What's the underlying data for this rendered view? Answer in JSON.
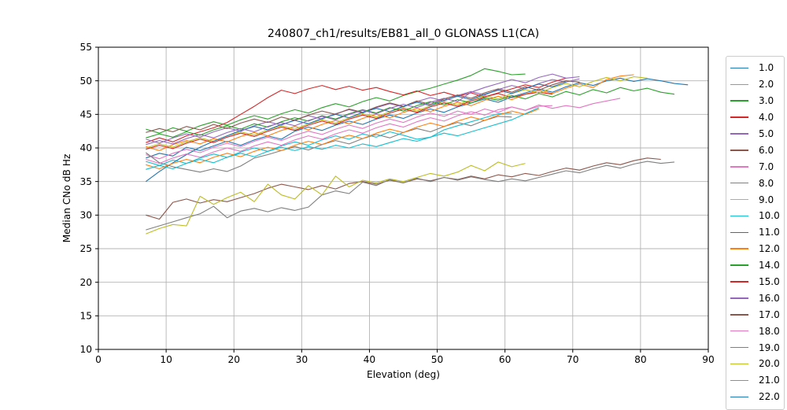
{
  "chart_data": {
    "type": "line",
    "title": "240807_ch1/results/EB81_all_0 GLONASS L1(CA)",
    "xlabel": "Elevation (deg)",
    "ylabel": "Median CNo dB Hz",
    "xlim": [
      0,
      90
    ],
    "ylim": [
      10,
      55
    ],
    "xticks": [
      0,
      10,
      20,
      30,
      40,
      50,
      60,
      70,
      80,
      90
    ],
    "yticks": [
      10,
      15,
      20,
      25,
      30,
      35,
      40,
      45,
      50,
      55
    ],
    "grid": true,
    "legend_position": "outside-right",
    "legend": [
      {
        "label": "1.0",
        "color": "#1f77b4",
        "clipped": false
      },
      {
        "label": "2.0",
        "color": "#ff7f0e",
        "clipped": false
      },
      {
        "label": "3.0",
        "color": "#2ca02c",
        "clipped": false
      },
      {
        "label": "4.0",
        "color": "#d62728",
        "clipped": false
      },
      {
        "label": "5.0",
        "color": "#9467bd",
        "clipped": false
      },
      {
        "label": "6.0",
        "color": "#8c564b",
        "clipped": false
      },
      {
        "label": "7.0",
        "color": "#e377c2",
        "clipped": false
      },
      {
        "label": "8.0",
        "color": "#7f7f7f",
        "clipped": false
      },
      {
        "label": "9.0",
        "color": "#bcbd22",
        "clipped": false
      },
      {
        "label": "10.0",
        "color": "#17becf",
        "clipped": false
      },
      {
        "label": "11.0",
        "color": "#1f77b4",
        "clipped": false
      },
      {
        "label": "12.0",
        "color": "#ff7f0e",
        "clipped": false
      },
      {
        "label": "14.0",
        "color": "#2ca02c",
        "clipped": false
      },
      {
        "label": "15.0",
        "color": "#d62728",
        "clipped": false
      },
      {
        "label": "16.0",
        "color": "#9467bd",
        "clipped": false
      },
      {
        "label": "17.0",
        "color": "#8c564b",
        "clipped": false
      },
      {
        "label": "18.0",
        "color": "#e377c2",
        "clipped": false
      },
      {
        "label": "19.0",
        "color": "#7f7f7f",
        "clipped": false
      },
      {
        "label": "20.0",
        "color": "#bcbd22",
        "clipped": false
      },
      {
        "label": "21.0",
        "color": "#17becf",
        "clipped": false
      },
      {
        "label": "22.0",
        "color": "#1f77b4",
        "clipped": true
      }
    ],
    "series": [
      {
        "name": "1.0",
        "color": "#1f77b4",
        "x0": 7,
        "step": 2,
        "y": [
          38.5,
          39.2,
          38.8,
          40.1,
          39.6,
          40.3,
          41.0,
          40.4,
          41.2,
          41.8,
          41.3,
          42.5,
          43.1,
          42.6,
          43.4,
          44.0,
          43.5,
          44.3,
          44.9,
          44.4,
          45.2,
          45.8,
          45.3,
          46.1,
          46.7,
          47.3,
          46.8,
          47.6,
          48.2,
          48.8,
          48.3,
          49.1,
          49.7,
          49.3,
          50.0,
          50.4,
          49.9,
          50.3,
          50.0,
          49.6,
          49.4
        ]
      },
      {
        "name": "2.0",
        "color": "#ff7f0e",
        "x0": 7,
        "step": 2,
        "y": [
          40.2,
          39.6,
          40.5,
          41.1,
          40.6,
          41.4,
          40.9,
          41.7,
          42.3,
          41.8,
          42.6,
          43.2,
          42.7,
          43.5,
          44.1,
          43.6,
          44.4,
          45.0,
          44.5,
          45.3,
          45.9,
          45.4,
          46.2,
          46.8,
          46.3,
          47.1,
          47.7,
          47.2,
          48.0,
          48.6,
          48.1,
          48.9,
          49.5,
          49.0,
          50.2,
          50.7,
          50.9
        ]
      },
      {
        "name": "3.0",
        "color": "#2ca02c",
        "x0": 7,
        "step": 2,
        "y": [
          42.8,
          42.2,
          43.0,
          42.5,
          43.3,
          43.9,
          43.4,
          44.2,
          44.8,
          44.3,
          45.1,
          45.7,
          45.2,
          46.0,
          46.6,
          46.1,
          46.9,
          47.5,
          47.0,
          47.8,
          48.4,
          48.9,
          49.5,
          50.1,
          50.8,
          51.8,
          51.4,
          50.9,
          51.0
        ]
      },
      {
        "name": "4.0",
        "color": "#d62728",
        "x0": 7,
        "step": 2,
        "y": [
          40.8,
          41.5,
          40.9,
          41.8,
          42.4,
          43.0,
          43.8,
          45.0,
          46.2,
          47.5,
          48.6,
          48.1,
          48.8,
          49.3,
          48.7,
          49.2,
          48.6,
          49.0,
          48.4,
          47.9,
          48.5,
          47.8,
          48.3,
          47.7,
          48.2,
          47.6,
          48.1,
          47.5,
          48.0,
          48.3,
          48.0
        ]
      },
      {
        "name": "5.0",
        "color": "#9467bd",
        "x0": 7,
        "step": 2,
        "y": [
          41.3,
          40.7,
          41.5,
          42.1,
          41.6,
          42.4,
          43.0,
          42.5,
          43.3,
          43.9,
          43.4,
          44.2,
          44.8,
          44.3,
          45.1,
          45.7,
          45.2,
          46.0,
          46.6,
          46.1,
          46.9,
          47.5,
          47.0,
          47.8,
          48.4,
          47.9,
          48.7,
          49.3,
          48.8,
          49.6,
          50.2,
          49.8,
          50.3
        ]
      },
      {
        "name": "6.0",
        "color": "#8c564b",
        "x0": 7,
        "step": 2,
        "y": [
          42.3,
          42.9,
          42.4,
          43.2,
          42.7,
          43.5,
          42.9,
          43.7,
          44.3,
          43.8,
          44.6,
          44.1,
          44.9,
          45.5,
          45.0,
          45.8,
          45.3,
          46.1,
          46.7,
          46.2,
          47.0,
          46.5,
          47.3,
          47.9,
          47.4,
          48.2,
          48.8,
          48.3,
          49.1,
          48.6,
          49.4,
          50.0,
          49.8
        ]
      },
      {
        "name": "7.0",
        "color": "#e377c2",
        "x0": 7,
        "step": 2,
        "y": [
          39.0,
          38.4,
          39.2,
          39.8,
          39.3,
          40.1,
          40.7,
          40.2,
          41.0,
          41.6,
          41.1,
          41.9,
          42.5,
          42.0,
          42.8,
          43.4,
          42.9,
          43.7,
          44.3,
          43.8,
          44.6,
          45.2,
          44.7,
          45.5,
          45.0,
          45.8,
          45.3,
          46.1,
          45.6,
          46.4,
          45.9,
          46.3,
          46.0,
          46.6,
          47.0,
          47.4
        ]
      },
      {
        "name": "8.0",
        "color": "#7f7f7f",
        "x0": 7,
        "step": 2,
        "y": [
          39.3,
          37.8,
          37.2,
          36.8,
          36.4,
          36.9,
          36.5,
          37.3,
          38.5,
          39.0,
          39.6,
          40.2,
          39.7,
          40.5,
          41.1,
          40.6,
          41.4,
          42.0,
          41.5,
          42.3,
          42.9,
          42.4,
          43.2,
          43.8,
          43.3,
          44.1,
          44.7,
          44.6
        ]
      },
      {
        "name": "9.0",
        "color": "#bcbd22",
        "x0": 7,
        "step": 2,
        "y": [
          40.0,
          40.6,
          40.1,
          40.9,
          41.5,
          41.0,
          41.8,
          42.4,
          41.9,
          42.7,
          43.3,
          42.8,
          43.6,
          44.2,
          43.7,
          44.5,
          45.1,
          44.6,
          45.4,
          46.0,
          45.5,
          46.3,
          46.9,
          46.4,
          47.2,
          47.8,
          47.3,
          48.1,
          48.7,
          48.2,
          49.0,
          49.6,
          49.1,
          49.9,
          50.5,
          50.0,
          50.6,
          50.4
        ]
      },
      {
        "name": "10.0",
        "color": "#17becf",
        "x0": 7,
        "step": 2,
        "y": [
          38.0,
          37.4,
          38.2,
          37.7,
          38.5,
          39.1,
          38.6,
          39.4,
          40.0,
          39.5,
          40.3,
          40.9,
          40.4,
          41.2,
          41.8,
          41.3,
          42.1,
          41.6,
          42.4,
          41.9,
          41.3,
          41.6,
          42.7,
          43.3,
          43.9,
          44.5,
          45.1,
          45.2
        ]
      },
      {
        "name": "11.0",
        "color": "#1f77b4",
        "x0": 7,
        "step": 2,
        "y": [
          35.0,
          36.5,
          37.8,
          39.0,
          40.1,
          41.0,
          41.8,
          42.6,
          43.2,
          42.7,
          43.5,
          44.1,
          43.6,
          44.4,
          45.0,
          44.5,
          45.3,
          45.9,
          45.4,
          46.2,
          46.8,
          46.3,
          47.1,
          47.7,
          47.2,
          48.0,
          48.6,
          48.1,
          48.9,
          49.5,
          49.1,
          49.8
        ]
      },
      {
        "name": "12.0",
        "color": "#ff7f0e",
        "x0": 7,
        "step": 2,
        "y": [
          37.5,
          36.9,
          37.7,
          38.3,
          37.8,
          38.6,
          39.2,
          38.7,
          39.5,
          40.1,
          39.6,
          40.4,
          41.0,
          40.5,
          41.3,
          41.9,
          41.4,
          42.2,
          42.8,
          42.3,
          43.1,
          43.7,
          43.2,
          44.0,
          44.6,
          44.1,
          44.9,
          45.5,
          45.0,
          45.8
        ]
      },
      {
        "name": "14.0",
        "color": "#2ca02c",
        "x0": 7,
        "step": 2,
        "y": [
          41.5,
          42.1,
          41.6,
          42.4,
          41.9,
          42.7,
          43.3,
          42.8,
          43.6,
          43.1,
          43.9,
          44.5,
          44.0,
          44.8,
          44.3,
          45.1,
          45.7,
          45.2,
          46.0,
          45.5,
          46.3,
          46.9,
          46.4,
          47.2,
          46.7,
          47.5,
          47.1,
          47.8,
          47.3,
          48.1,
          47.6,
          48.4,
          47.9,
          48.7,
          48.2,
          49.0,
          48.5,
          48.9,
          48.3,
          48.0
        ]
      },
      {
        "name": "15.0",
        "color": "#d62728",
        "x0": 7,
        "step": 2,
        "y": [
          39.8,
          40.4,
          39.9,
          40.7,
          41.3,
          40.8,
          41.6,
          42.2,
          41.7,
          42.5,
          43.1,
          42.6,
          43.4,
          44.0,
          43.5,
          44.3,
          44.9,
          44.4,
          45.2,
          45.8,
          45.3,
          46.1,
          46.7,
          46.2,
          47.0,
          47.6,
          48.2,
          48.8,
          49.4,
          49.0,
          49.8,
          50.4
        ]
      },
      {
        "name": "16.0",
        "color": "#9467bd",
        "x0": 7,
        "step": 2,
        "y": [
          40.5,
          41.1,
          40.6,
          41.4,
          42.0,
          41.5,
          42.3,
          42.9,
          42.4,
          43.2,
          43.8,
          43.3,
          44.1,
          44.7,
          44.2,
          45.0,
          45.6,
          45.1,
          45.9,
          46.5,
          46.0,
          46.8,
          47.4,
          46.9,
          48.3,
          49.0,
          49.6,
          50.2,
          49.7,
          50.5,
          51.0,
          50.4,
          50.6
        ]
      },
      {
        "name": "17.0",
        "color": "#8c564b",
        "x0": 7,
        "step": 2,
        "y": [
          30.0,
          29.4,
          31.9,
          32.4,
          31.8,
          32.3,
          32.0,
          32.6,
          33.2,
          34.0,
          34.6,
          34.2,
          33.8,
          34.4,
          33.9,
          34.7,
          35.0,
          34.6,
          35.2,
          34.8,
          35.4,
          35.1,
          35.6,
          35.3,
          35.8,
          35.4,
          36.0,
          35.7,
          36.2,
          35.9,
          36.5,
          37.0,
          36.7,
          37.3,
          37.8,
          37.5,
          38.1,
          38.5,
          38.3
        ]
      },
      {
        "name": "18.0",
        "color": "#e377c2",
        "x0": 7,
        "step": 2,
        "y": [
          38.3,
          37.7,
          38.5,
          39.1,
          38.6,
          39.4,
          40.0,
          39.5,
          40.3,
          40.9,
          40.4,
          41.2,
          41.8,
          41.3,
          42.1,
          42.7,
          42.2,
          43.0,
          43.6,
          43.1,
          43.9,
          44.5,
          44.0,
          44.8,
          45.4,
          44.9,
          45.7,
          46.1,
          45.6,
          46.2,
          46.3
        ]
      },
      {
        "name": "19.0",
        "color": "#7f7f7f",
        "x0": 7,
        "step": 2,
        "y": [
          27.8,
          28.4,
          29.0,
          29.6,
          30.2,
          31.3,
          29.6,
          30.6,
          31.0,
          30.5,
          31.1,
          30.7,
          31.2,
          33.0,
          33.6,
          33.2,
          34.9,
          34.4,
          35.3,
          34.8,
          35.5,
          35.0,
          35.6,
          35.2,
          35.7,
          35.3,
          35.0,
          35.4,
          35.1,
          35.6,
          36.1,
          36.6,
          36.3,
          36.9,
          37.4,
          37.0,
          37.6,
          38.0,
          37.7,
          37.9
        ]
      },
      {
        "name": "20.0",
        "color": "#bcbd22",
        "x0": 7,
        "step": 2,
        "y": [
          27.2,
          28.0,
          28.6,
          28.4,
          32.8,
          31.6,
          32.6,
          33.4,
          32.0,
          34.6,
          33.0,
          32.4,
          34.4,
          33.0,
          35.8,
          34.2,
          35.2,
          34.8,
          35.4,
          35.0,
          35.6,
          36.2,
          35.8,
          36.4,
          37.4,
          36.6,
          37.9,
          37.2,
          37.7
        ]
      },
      {
        "name": "21.0",
        "color": "#17becf",
        "x0": 7,
        "step": 2,
        "y": [
          36.8,
          37.4,
          36.9,
          37.7,
          38.3,
          37.8,
          38.6,
          39.2,
          38.7,
          39.5,
          40.1,
          39.6,
          40.2,
          39.8,
          40.4,
          40.0,
          40.6,
          40.2,
          40.8,
          41.4,
          41.0,
          41.6,
          42.2,
          41.8,
          42.4,
          43.0,
          43.6,
          44.2,
          45.1,
          46.0
        ]
      }
    ]
  },
  "style": {
    "grid_color": "#b4b4b4",
    "spine_color": "#000000",
    "legend_border_color": "#cccccc",
    "background": "#ffffff"
  }
}
